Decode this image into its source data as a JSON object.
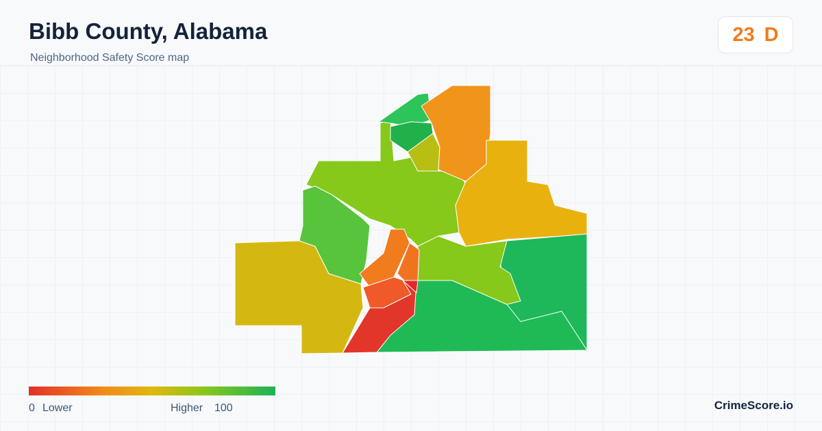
{
  "header": {
    "title": "Bibb County, Alabama",
    "subtitle": "Neighborhood Safety Score map"
  },
  "score": {
    "value": "23",
    "grade": "D"
  },
  "legend": {
    "min": "0",
    "min_label": "Lower",
    "max_label": "Higher",
    "max": "100"
  },
  "brand": "CrimeScore.io"
}
